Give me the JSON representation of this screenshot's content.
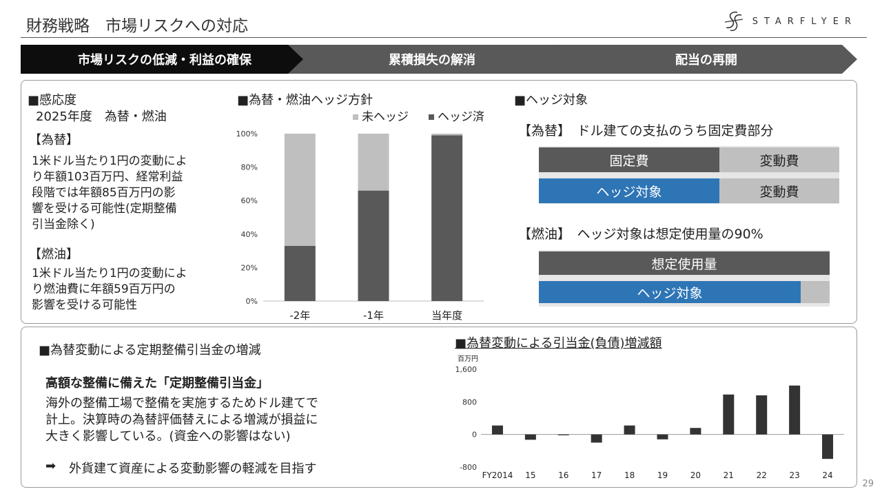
{
  "header": {
    "title": "財務戦略　市場リスクへの対応",
    "logo_text": "STARFLYER",
    "page_number": "29"
  },
  "steps": [
    {
      "label": "市場リスクの低減・利益の確保",
      "active": true
    },
    {
      "label": "累積損失の解消",
      "active": false
    },
    {
      "label": "配当の再開",
      "active": false
    }
  ],
  "sensitivity": {
    "heading": "■感応度",
    "subheading": "2025年度　為替・燃油",
    "fx_label": "【為替】",
    "fx_lines": [
      "1米ドル当たり1円の変動によ",
      "り年額103百万円、経常利益",
      "段階では年額85百万円の影",
      "響を受ける可能性(定期整備",
      "引当金除く)"
    ],
    "fuel_label": "【燃油】",
    "fuel_lines": [
      "1米ドル当たり1円の変動によ",
      "り燃油費に年額59百万円の",
      "影響を受ける可能性"
    ]
  },
  "hedge_policy": {
    "heading": "■為替・燃油ヘッジ方針",
    "legend_unhedged": "未ヘッジ",
    "legend_hedged": "ヘッジ済"
  },
  "hedge_target": {
    "heading": "■ヘッジ対象",
    "fx_caption": "【為替】　ドル建ての支払のうち固定費部分",
    "fx_bar1": {
      "fixed": "固定費",
      "variable": "変動費"
    },
    "fx_bar2": {
      "hedged": "ヘッジ対象",
      "variable": "変動費"
    },
    "fuel_caption": "【燃油】　ヘッジ対象は想定使用量の90%",
    "fuel_bar1": "想定使用量",
    "fuel_bar2": "ヘッジ対象",
    "fuel_hedge_ratio": 0.9
  },
  "reserve": {
    "heading": "■為替変動による定期整備引当金の増減",
    "subheading": "高額な整備に備えた「定期整備引当金」",
    "body_lines": [
      "海外の整備工場で整備を実施するためドル建てで",
      "計上。決算時の為替評価替えによる増減が損益に",
      "大きく影響している。(資金への影響はない)"
    ],
    "arrow": "➡",
    "goal": "外貨建て資産による変動影響の軽減を目指す"
  },
  "colors": {
    "dark": "#595959",
    "light_gray": "#bfbfbf",
    "blue": "#2e75b6",
    "black_step": "#0d0d0d",
    "gray_step": "#595959",
    "bar_dark": "#333333"
  },
  "chart_data": [
    {
      "type": "bar",
      "stacked": true,
      "title": "",
      "categories": [
        "-2年",
        "-1年",
        "当年度"
      ],
      "series": [
        {
          "name": "ヘッジ済",
          "values": [
            33,
            66,
            99
          ]
        },
        {
          "name": "未ヘッジ",
          "values": [
            67,
            34,
            1
          ]
        }
      ],
      "yticks": [
        "0%",
        "20%",
        "40%",
        "60%",
        "80%",
        "100%"
      ],
      "ylim": [
        0,
        100
      ],
      "legend": "top-right",
      "grid": false
    },
    {
      "type": "bar",
      "title": "■為替変動による引当金(負債)増減額",
      "ylabel": "百万円",
      "categories": [
        "FY2014",
        "15",
        "16",
        "17",
        "18",
        "19",
        "20",
        "21",
        "22",
        "23",
        "24"
      ],
      "values": [
        220,
        -130,
        -20,
        -200,
        220,
        -120,
        160,
        980,
        960,
        1200,
        -600
      ],
      "yticks": [
        "1,600",
        "800",
        "0",
        "-800"
      ],
      "ylim": [
        -800,
        1600
      ],
      "grid": false
    }
  ]
}
